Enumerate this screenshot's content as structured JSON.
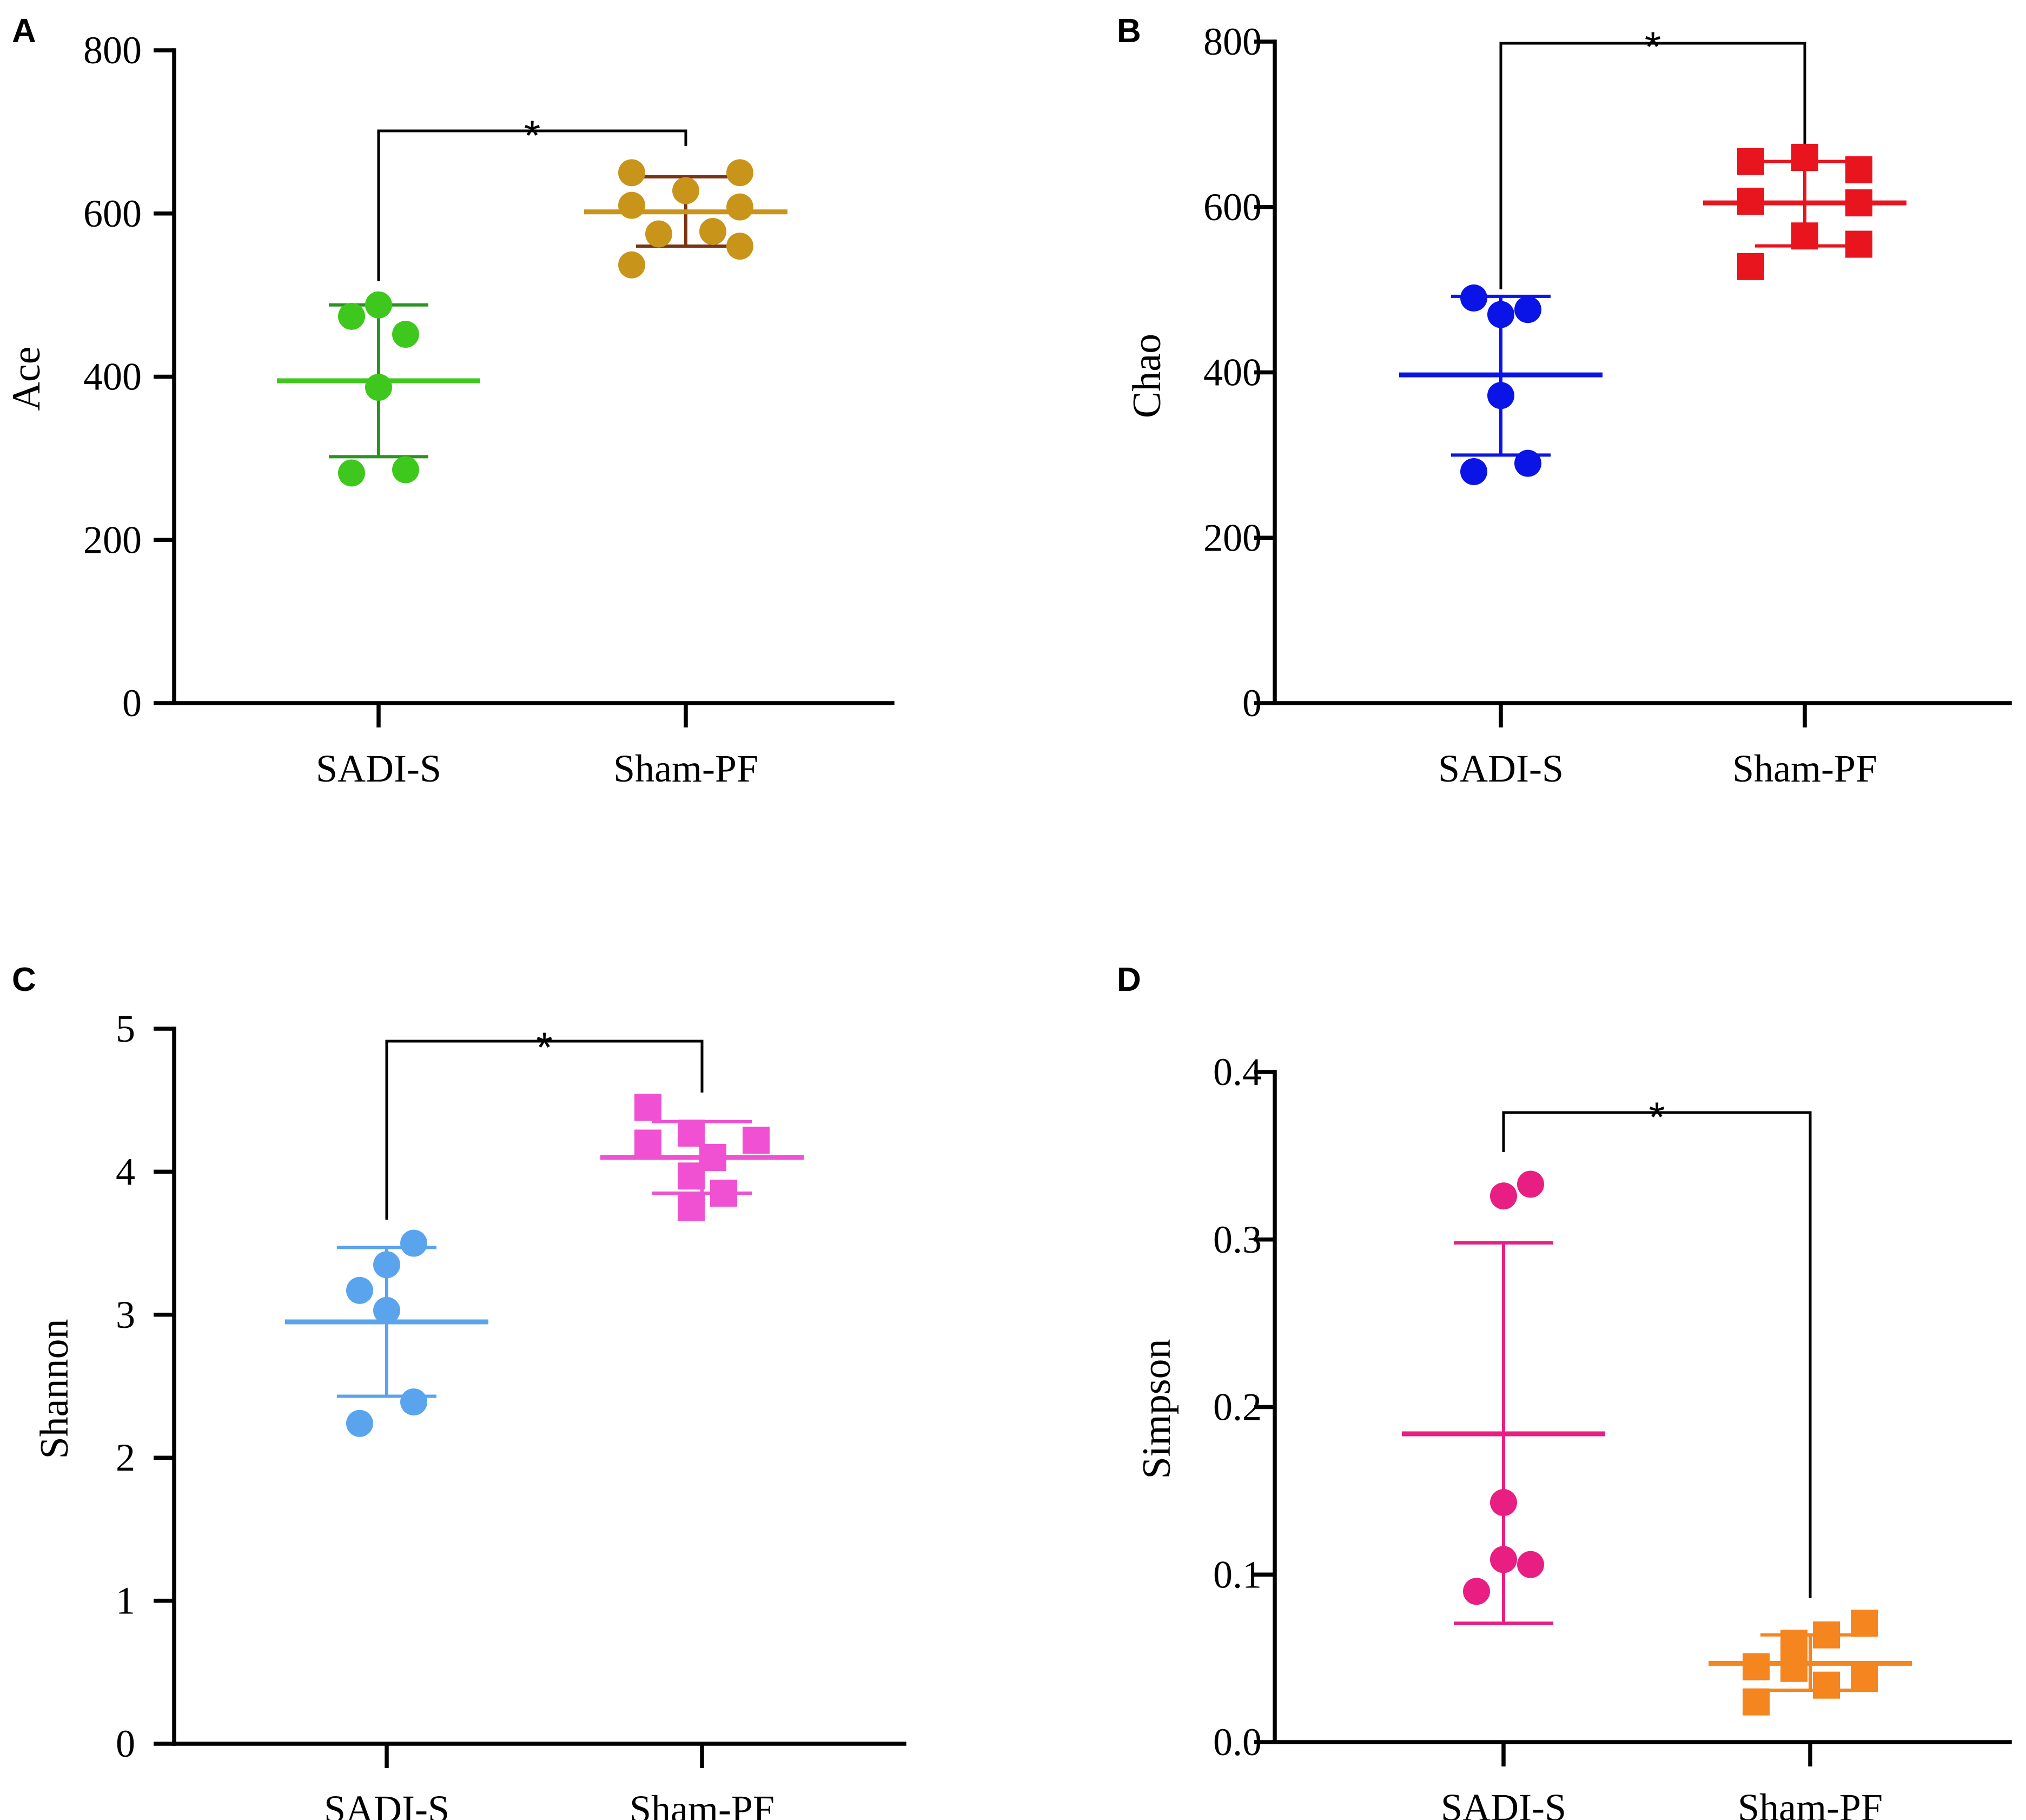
{
  "chart_data": [
    {
      "type": "scatter",
      "panel": "A",
      "ylabel": "Ace",
      "ylim": [
        0,
        800
      ],
      "yticks": [
        0,
        200,
        400,
        600,
        800
      ],
      "categories": [
        "SADI-S",
        "Sham-PF"
      ],
      "significance": "*",
      "series": [
        {
          "name": "SADI-S",
          "marker": "circle",
          "color": "#3ec81e",
          "error_color": "#2b9420",
          "points": [
            {
              "x": 0,
              "y": 488
            },
            {
              "x": -1,
              "y": 474
            },
            {
              "x": 1,
              "y": 452
            },
            {
              "x": 0,
              "y": 387
            },
            {
              "x": -1,
              "y": 282
            },
            {
              "x": 1,
              "y": 286
            }
          ],
          "mean": 395,
          "err_low": 302,
          "err_high": 488
        },
        {
          "name": "Sham-PF",
          "marker": "circle",
          "color": "#c8941a",
          "error_color": "#7a3416",
          "points": [
            {
              "x": -2,
              "y": 650
            },
            {
              "x": 2,
              "y": 650
            },
            {
              "x": 0,
              "y": 628
            },
            {
              "x": -2,
              "y": 610
            },
            {
              "x": 2,
              "y": 608
            },
            {
              "x": -1,
              "y": 575
            },
            {
              "x": 1,
              "y": 578
            },
            {
              "x": 2,
              "y": 560
            },
            {
              "x": -2,
              "y": 537
            }
          ],
          "mean": 602,
          "err_low": 560,
          "err_high": 645
        }
      ]
    },
    {
      "type": "scatter",
      "panel": "B",
      "ylabel": "Chao",
      "ylim": [
        0,
        800
      ],
      "yticks": [
        0,
        200,
        400,
        600,
        800
      ],
      "categories": [
        "SADI-S",
        "Sham-PF"
      ],
      "significance": "*",
      "series": [
        {
          "name": "SADI-S",
          "marker": "circle",
          "color": "#0a14e6",
          "error_color": "#0a14e6",
          "points": [
            {
              "x": -1,
              "y": 490
            },
            {
              "x": 0,
              "y": 470
            },
            {
              "x": 1,
              "y": 476
            },
            {
              "x": 0,
              "y": 372
            },
            {
              "x": -1,
              "y": 280
            },
            {
              "x": 1,
              "y": 290
            }
          ],
          "mean": 397,
          "err_low": 300,
          "err_high": 492
        },
        {
          "name": "Sham-PF",
          "marker": "square",
          "color": "#e8141e",
          "error_color": "#e8141e",
          "points": [
            {
              "x": -2,
              "y": 655
            },
            {
              "x": 0,
              "y": 660
            },
            {
              "x": 2,
              "y": 645
            },
            {
              "x": -2,
              "y": 607
            },
            {
              "x": 2,
              "y": 605
            },
            {
              "x": 0,
              "y": 565
            },
            {
              "x": 2,
              "y": 555
            },
            {
              "x": -2,
              "y": 528
            }
          ],
          "mean": 605,
          "err_low": 553,
          "err_high": 655
        }
      ]
    },
    {
      "type": "scatter",
      "panel": "C",
      "ylabel": "Shannon",
      "ylim": [
        0,
        5
      ],
      "yticks": [
        0,
        1,
        2,
        3,
        4,
        5
      ],
      "categories": [
        "SADI-S",
        "Sham-PF"
      ],
      "significance": "*",
      "series": [
        {
          "name": "SADI-S",
          "marker": "circle",
          "color": "#5aa4ee",
          "error_color": "#5aa4ee",
          "points": [
            {
              "x": 1,
              "y": 3.5
            },
            {
              "x": 0,
              "y": 3.35
            },
            {
              "x": -1,
              "y": 3.17
            },
            {
              "x": 0,
              "y": 3.03
            },
            {
              "x": 1,
              "y": 2.39
            },
            {
              "x": -1,
              "y": 2.24
            }
          ],
          "mean": 2.95,
          "err_low": 2.43,
          "err_high": 3.47
        },
        {
          "name": "Sham-PF",
          "marker": "square",
          "color": "#f050d2",
          "error_color": "#f050d2",
          "points": [
            {
              "x": -2,
              "y": 4.45
            },
            {
              "x": -2,
              "y": 4.2
            },
            {
              "x": -0.4,
              "y": 4.27
            },
            {
              "x": 2,
              "y": 4.22
            },
            {
              "x": 0.4,
              "y": 4.1
            },
            {
              "x": -0.4,
              "y": 3.97
            },
            {
              "x": 0.8,
              "y": 3.85
            },
            {
              "x": -0.4,
              "y": 3.75
            }
          ],
          "mean": 4.1,
          "err_low": 3.85,
          "err_high": 4.35
        }
      ]
    },
    {
      "type": "scatter",
      "panel": "D",
      "ylabel": "Simpson",
      "ylim": [
        0,
        0.4
      ],
      "yticks": [
        0.0,
        0.1,
        0.2,
        0.3,
        0.4
      ],
      "yticklabels": [
        "0.0",
        "0.1",
        "0.2",
        "0.3",
        "0.4"
      ],
      "categories": [
        "SADI-S",
        "Sham-PF"
      ],
      "significance": "*",
      "series": [
        {
          "name": "SADI-S",
          "marker": "circle",
          "color": "#e81e82",
          "error_color": "#e81e82",
          "points": [
            {
              "x": 0,
              "y": 0.326
            },
            {
              "x": 1,
              "y": 0.333
            },
            {
              "x": 0,
              "y": 0.143
            },
            {
              "x": 0,
              "y": 0.109
            },
            {
              "x": 1,
              "y": 0.106
            },
            {
              "x": -1,
              "y": 0.09
            }
          ],
          "mean": 0.184,
          "err_low": 0.071,
          "err_high": 0.298
        },
        {
          "name": "Sham-PF",
          "marker": "square",
          "color": "#f5851e",
          "error_color": "#f5851e",
          "points": [
            {
              "x": 2,
              "y": 0.071
            },
            {
              "x": 0.6,
              "y": 0.064
            },
            {
              "x": -0.6,
              "y": 0.059
            },
            {
              "x": -2,
              "y": 0.045
            },
            {
              "x": -0.6,
              "y": 0.044
            },
            {
              "x": 2,
              "y": 0.038
            },
            {
              "x": 0.6,
              "y": 0.034
            },
            {
              "x": -2,
              "y": 0.024
            }
          ],
          "mean": 0.047,
          "err_low": 0.031,
          "err_high": 0.064
        }
      ]
    }
  ]
}
